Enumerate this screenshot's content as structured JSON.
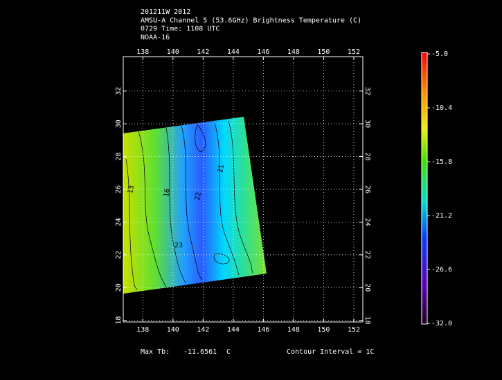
{
  "header": {
    "lines": [
      "201211W 2012",
      "AMSU-A Channel 5 (53.6GHz) Brightness Temperature (C)",
      "0729 Time: 1108 UTC",
      "NOAA-16"
    ]
  },
  "map": {
    "xlim": [
      136.7,
      152.6
    ],
    "ylim": [
      17.9,
      34.1
    ],
    "xticks": [
      138,
      140,
      142,
      144,
      146,
      148,
      150,
      152
    ],
    "yticks": [
      18,
      20,
      22,
      24,
      26,
      28,
      30,
      32
    ],
    "grid": true
  },
  "colorbar": {
    "lim": [
      -32,
      -5
    ],
    "ticks": [
      {
        "value": -5,
        "label": "-5.0"
      },
      -10.4,
      -15.8,
      -21.2,
      -26.6,
      {
        "value": -32,
        "label": "-32.0"
      }
    ]
  },
  "contour_labels": [
    "13",
    "16",
    "21",
    "22",
    "23"
  ],
  "footer": {
    "max_label": "Max Tb:",
    "max_value": -11.6561,
    "unit": "C",
    "contour": "Contour Interval = 1C"
  }
}
